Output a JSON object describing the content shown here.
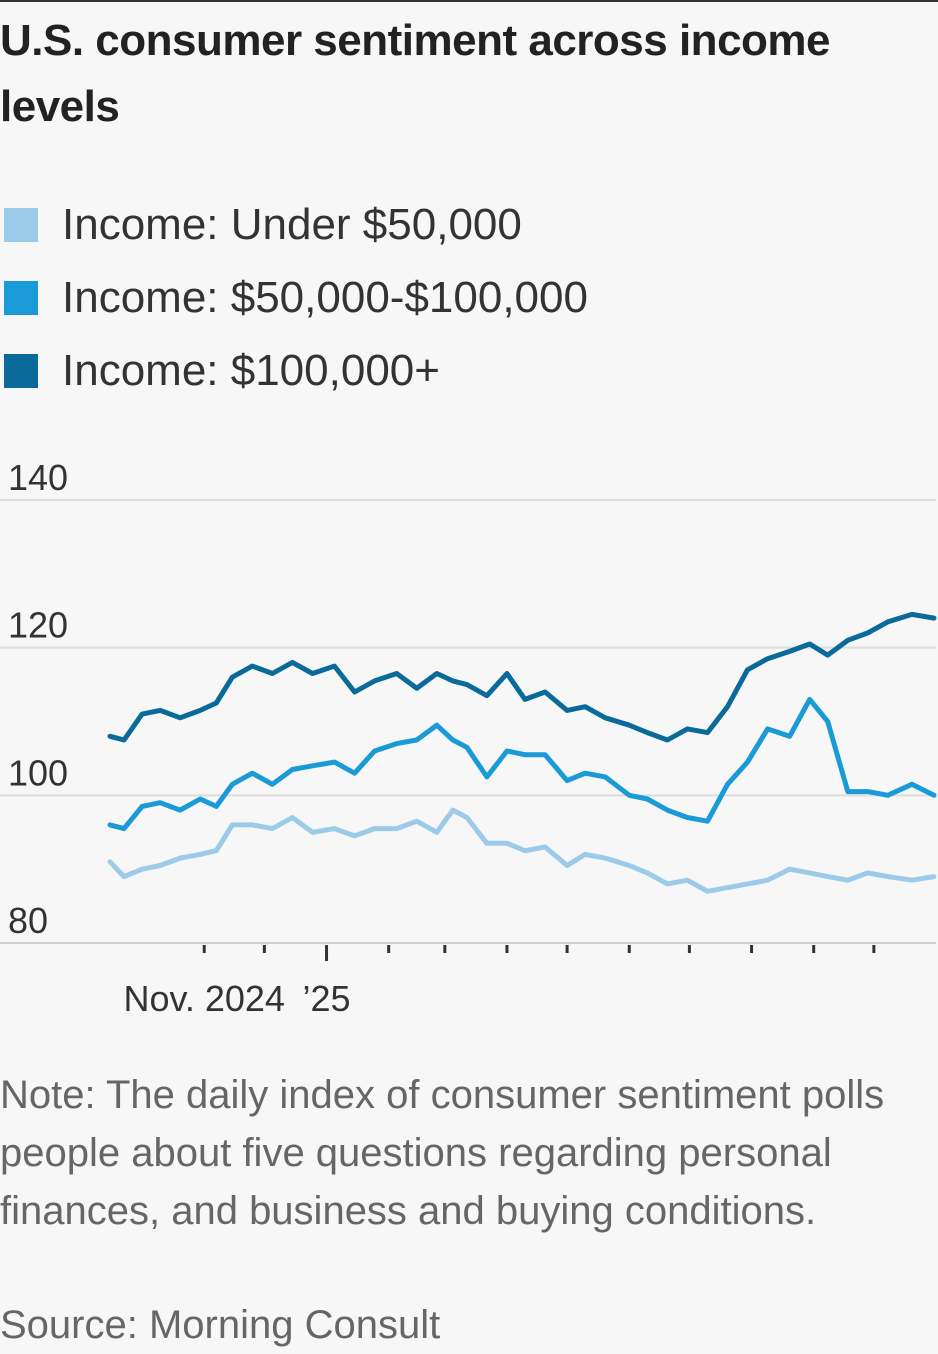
{
  "chart_data": {
    "type": "line",
    "title": "U.S. consumer sentiment across income levels",
    "xlabel": "",
    "ylabel": "",
    "ylim": [
      80,
      140
    ],
    "yticks": [
      80,
      100,
      120,
      140
    ],
    "x_tick_labels": [
      {
        "label": "Nov. 2024",
        "date": "2024-11-01"
      },
      {
        "label": "’25",
        "date": "2025-01-01"
      }
    ],
    "x_range": [
      "2024-09-15",
      "2025-10-31"
    ],
    "series": [
      {
        "name": "Income: Under $50,000",
        "color": "#9ccbea",
        "points": [
          [
            "2024-09-15",
            91
          ],
          [
            "2024-09-22",
            89
          ],
          [
            "2024-10-01",
            90
          ],
          [
            "2024-10-10",
            90.5
          ],
          [
            "2024-10-20",
            91.5
          ],
          [
            "2024-10-30",
            92
          ],
          [
            "2024-11-07",
            92.5
          ],
          [
            "2024-11-15",
            96
          ],
          [
            "2024-11-25",
            96
          ],
          [
            "2024-12-05",
            95.5
          ],
          [
            "2024-12-15",
            97
          ],
          [
            "2024-12-25",
            95
          ],
          [
            "2025-01-05",
            95.5
          ],
          [
            "2025-01-15",
            94.5
          ],
          [
            "2025-01-25",
            95.5
          ],
          [
            "2025-02-05",
            95.5
          ],
          [
            "2025-02-15",
            96.5
          ],
          [
            "2025-02-25",
            95
          ],
          [
            "2025-03-05",
            98
          ],
          [
            "2025-03-12",
            97
          ],
          [
            "2025-03-22",
            93.5
          ],
          [
            "2025-04-01",
            93.5
          ],
          [
            "2025-04-10",
            92.5
          ],
          [
            "2025-04-20",
            93
          ],
          [
            "2025-05-01",
            90.5
          ],
          [
            "2025-05-10",
            92
          ],
          [
            "2025-05-20",
            91.5
          ],
          [
            "2025-06-01",
            90.5
          ],
          [
            "2025-06-10",
            89.5
          ],
          [
            "2025-06-20",
            88
          ],
          [
            "2025-06-30",
            88.5
          ],
          [
            "2025-07-10",
            87
          ],
          [
            "2025-07-20",
            87.5
          ],
          [
            "2025-07-30",
            88
          ],
          [
            "2025-08-09",
            88.5
          ],
          [
            "2025-08-20",
            90
          ],
          [
            "2025-08-30",
            89.5
          ],
          [
            "2025-09-08",
            89
          ],
          [
            "2025-09-18",
            88.5
          ],
          [
            "2025-09-28",
            89.5
          ],
          [
            "2025-10-08",
            89
          ],
          [
            "2025-10-20",
            88.5
          ],
          [
            "2025-10-31",
            89
          ]
        ]
      },
      {
        "name": "Income: $50,000-$100,000",
        "color": "#1a9ad6",
        "points": [
          [
            "2024-09-15",
            96
          ],
          [
            "2024-09-22",
            95.5
          ],
          [
            "2024-10-01",
            98.5
          ],
          [
            "2024-10-10",
            99
          ],
          [
            "2024-10-20",
            98
          ],
          [
            "2024-10-30",
            99.5
          ],
          [
            "2024-11-07",
            98.5
          ],
          [
            "2024-11-15",
            101.5
          ],
          [
            "2024-11-25",
            103
          ],
          [
            "2024-12-05",
            101.5
          ],
          [
            "2024-12-15",
            103.5
          ],
          [
            "2024-12-25",
            104
          ],
          [
            "2025-01-05",
            104.5
          ],
          [
            "2025-01-15",
            103
          ],
          [
            "2025-01-25",
            106
          ],
          [
            "2025-02-05",
            107
          ],
          [
            "2025-02-15",
            107.5
          ],
          [
            "2025-02-25",
            109.5
          ],
          [
            "2025-03-05",
            107.5
          ],
          [
            "2025-03-12",
            106.5
          ],
          [
            "2025-03-22",
            102.5
          ],
          [
            "2025-04-01",
            106
          ],
          [
            "2025-04-10",
            105.5
          ],
          [
            "2025-04-20",
            105.5
          ],
          [
            "2025-05-01",
            102
          ],
          [
            "2025-05-10",
            103
          ],
          [
            "2025-05-20",
            102.5
          ],
          [
            "2025-06-01",
            100
          ],
          [
            "2025-06-10",
            99.5
          ],
          [
            "2025-06-20",
            98
          ],
          [
            "2025-06-30",
            97
          ],
          [
            "2025-07-10",
            96.5
          ],
          [
            "2025-07-20",
            101.5
          ],
          [
            "2025-07-30",
            104.5
          ],
          [
            "2025-08-09",
            109
          ],
          [
            "2025-08-20",
            108
          ],
          [
            "2025-08-30",
            113
          ],
          [
            "2025-09-08",
            110
          ],
          [
            "2025-09-18",
            100.5
          ],
          [
            "2025-09-28",
            100.5
          ],
          [
            "2025-10-08",
            100
          ],
          [
            "2025-10-20",
            101.5
          ],
          [
            "2025-10-31",
            100
          ]
        ]
      },
      {
        "name": "Income: $100,000+",
        "color": "#0a6a9a",
        "points": [
          [
            "2024-09-15",
            108
          ],
          [
            "2024-09-22",
            107.5
          ],
          [
            "2024-10-01",
            111
          ],
          [
            "2024-10-10",
            111.5
          ],
          [
            "2024-10-20",
            110.5
          ],
          [
            "2024-10-30",
            111.5
          ],
          [
            "2024-11-07",
            112.5
          ],
          [
            "2024-11-15",
            116
          ],
          [
            "2024-11-25",
            117.5
          ],
          [
            "2024-12-05",
            116.5
          ],
          [
            "2024-12-15",
            118
          ],
          [
            "2024-12-25",
            116.5
          ],
          [
            "2025-01-05",
            117.5
          ],
          [
            "2025-01-15",
            114
          ],
          [
            "2025-01-25",
            115.5
          ],
          [
            "2025-02-05",
            116.5
          ],
          [
            "2025-02-15",
            114.5
          ],
          [
            "2025-02-25",
            116.5
          ],
          [
            "2025-03-05",
            115.5
          ],
          [
            "2025-03-12",
            115
          ],
          [
            "2025-03-22",
            113.5
          ],
          [
            "2025-04-01",
            116.5
          ],
          [
            "2025-04-10",
            113
          ],
          [
            "2025-04-20",
            114
          ],
          [
            "2025-05-01",
            111.5
          ],
          [
            "2025-05-10",
            112
          ],
          [
            "2025-05-20",
            110.5
          ],
          [
            "2025-06-01",
            109.5
          ],
          [
            "2025-06-10",
            108.5
          ],
          [
            "2025-06-20",
            107.5
          ],
          [
            "2025-06-30",
            109
          ],
          [
            "2025-07-10",
            108.5
          ],
          [
            "2025-07-20",
            112
          ],
          [
            "2025-07-30",
            117
          ],
          [
            "2025-08-09",
            118.5
          ],
          [
            "2025-08-20",
            119.5
          ],
          [
            "2025-08-30",
            120.5
          ],
          [
            "2025-09-08",
            119
          ],
          [
            "2025-09-18",
            121
          ],
          [
            "2025-09-28",
            122
          ],
          [
            "2025-10-08",
            123.5
          ],
          [
            "2025-10-20",
            124.5
          ],
          [
            "2025-10-31",
            124
          ]
        ]
      }
    ]
  },
  "note": "Note: The daily index of consumer sentiment polls people about five questions regarding personal finances, and business and buying conditions.",
  "source": "Source: Morning Consult"
}
